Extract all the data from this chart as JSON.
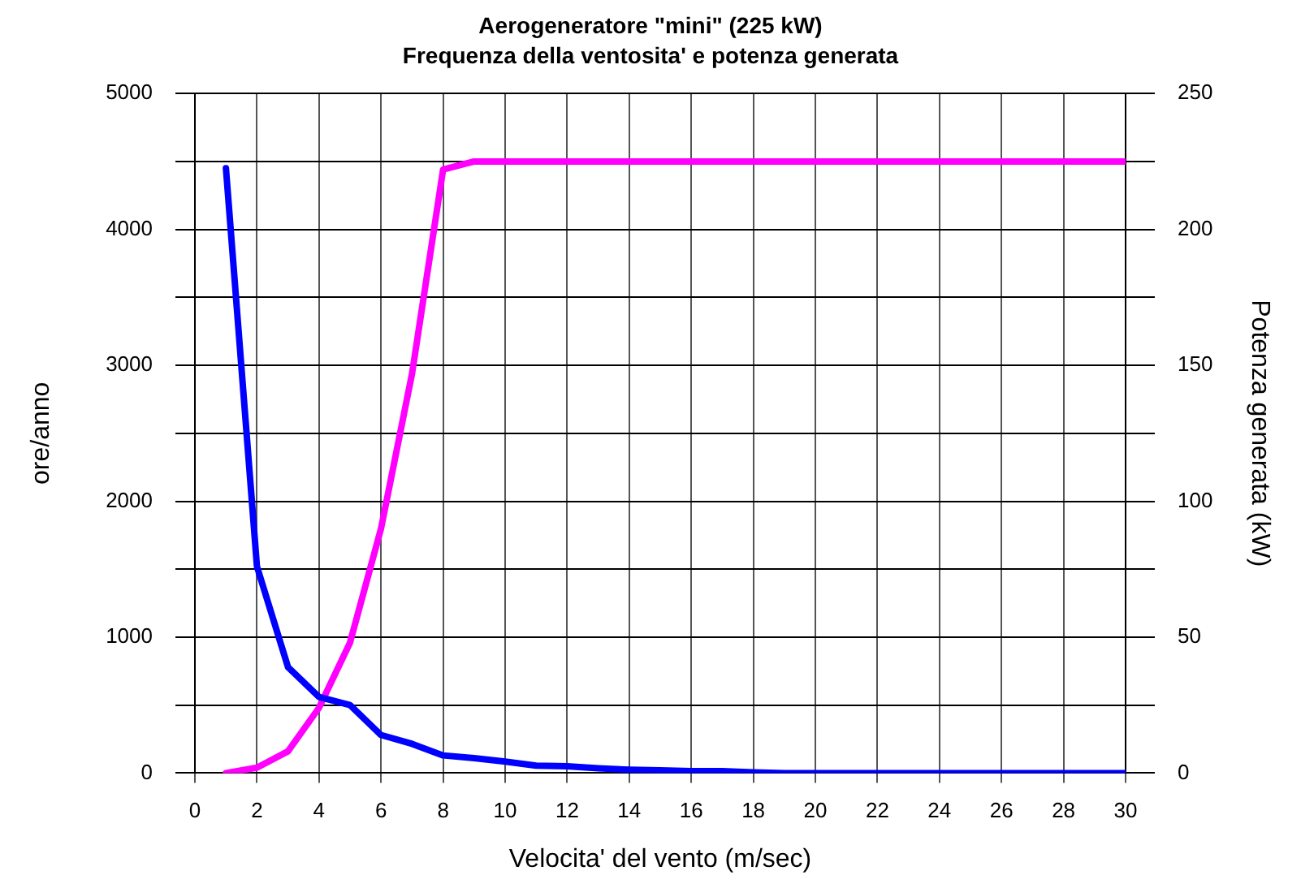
{
  "chart_data": {
    "type": "line",
    "title": "Aerogeneratore \"mini\" (225 kW)",
    "subtitle": "Frequenza della ventosita' e potenza generata",
    "xlabel": "Velocita' del vento (m/sec)",
    "ylabel": "ore/anno",
    "y2label": "Potenza generata (kW)",
    "x": [
      1,
      2,
      3,
      4,
      5,
      6,
      7,
      8,
      9,
      10,
      11,
      12,
      13,
      14,
      15,
      16,
      17,
      18,
      19,
      20,
      21,
      22,
      23,
      24,
      25,
      26,
      27,
      28,
      29,
      30
    ],
    "series": [
      {
        "color": "#0000ff",
        "values": [
          4450,
          1520,
          780,
          560,
          500,
          280,
          215,
          130,
          110,
          85,
          55,
          50,
          35,
          25,
          20,
          15,
          15,
          5,
          0,
          0,
          0,
          0,
          0,
          0,
          0,
          0,
          0,
          0,
          0,
          0
        ]
      },
      {
        "color": "#ff00ff",
        "axis": "y2",
        "values": [
          0,
          2,
          8,
          24,
          48,
          90,
          147,
          222,
          225,
          225,
          225,
          225,
          225,
          225,
          225,
          225,
          225,
          225,
          225,
          225,
          225,
          225,
          225,
          225,
          225,
          225,
          225,
          225,
          225,
          225
        ]
      }
    ],
    "xlim": [
      0,
      30
    ],
    "xticks": [
      0,
      2,
      4,
      6,
      8,
      10,
      12,
      14,
      16,
      18,
      20,
      22,
      24,
      26,
      28,
      30
    ],
    "ylim": [
      0,
      5000
    ],
    "yticks": [
      0,
      {
        "value": 500,
        "label": null
      },
      1000,
      {
        "value": 1500,
        "label": null
      },
      2000,
      {
        "value": 2500,
        "label": null
      },
      3000,
      {
        "value": 3500,
        "label": null
      },
      4000,
      {
        "value": 4500,
        "label": null
      },
      5000
    ],
    "y2lim": [
      0,
      250
    ],
    "y2ticks": [
      0,
      {
        "value": 25,
        "label": null
      },
      50,
      {
        "value": 75,
        "label": null
      },
      100,
      {
        "value": 125,
        "label": null
      },
      150,
      {
        "value": 175,
        "label": null
      },
      200,
      {
        "value": 225,
        "label": null
      },
      250
    ],
    "grid": true,
    "legend": false,
    "marker": "none",
    "line_style": "solid"
  }
}
